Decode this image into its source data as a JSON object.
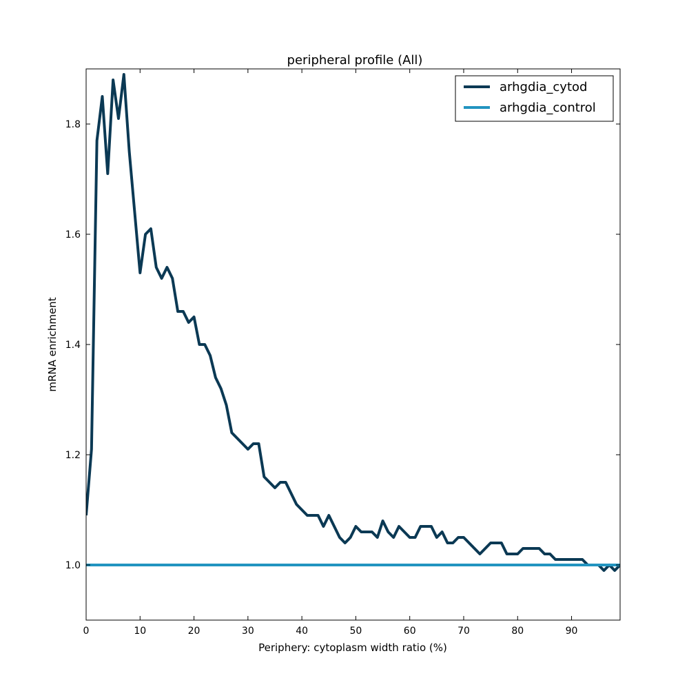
{
  "chart_data": {
    "type": "line",
    "title": "peripheral profile (All)",
    "xlabel": "Periphery: cytoplasm width ratio (%)",
    "ylabel": "mRNA enrichment",
    "xlim": [
      0,
      99
    ],
    "ylim": [
      0.9,
      1.9
    ],
    "x_ticks": [
      0,
      10,
      20,
      30,
      40,
      50,
      60,
      70,
      80,
      90
    ],
    "y_ticks": [
      1.0,
      1.2,
      1.4,
      1.6,
      1.8
    ],
    "y_tick_labels": [
      "1.0",
      "1.2",
      "1.4",
      "1.6",
      "1.8"
    ],
    "grid": false,
    "legend_position": "top-right",
    "series": [
      {
        "name": "arhgdia_cytod",
        "color": "#0b3954",
        "x": [
          0,
          1,
          2,
          3,
          4,
          5,
          6,
          7,
          8,
          9,
          10,
          11,
          12,
          13,
          14,
          15,
          16,
          17,
          18,
          19,
          20,
          21,
          22,
          23,
          24,
          25,
          26,
          27,
          28,
          29,
          30,
          31,
          32,
          33,
          34,
          35,
          36,
          37,
          38,
          39,
          40,
          41,
          42,
          43,
          44,
          45,
          46,
          47,
          48,
          49,
          50,
          51,
          52,
          53,
          54,
          55,
          56,
          57,
          58,
          59,
          60,
          61,
          62,
          63,
          64,
          65,
          66,
          67,
          68,
          69,
          70,
          71,
          72,
          73,
          74,
          75,
          76,
          77,
          78,
          79,
          80,
          81,
          82,
          83,
          84,
          85,
          86,
          87,
          88,
          89,
          90,
          91,
          92,
          93,
          94,
          95,
          96,
          97,
          98,
          99
        ],
        "values": [
          1.09,
          1.21,
          1.77,
          1.85,
          1.71,
          1.88,
          1.81,
          1.89,
          1.75,
          1.64,
          1.53,
          1.6,
          1.61,
          1.54,
          1.52,
          1.54,
          1.52,
          1.46,
          1.46,
          1.44,
          1.45,
          1.4,
          1.4,
          1.38,
          1.34,
          1.32,
          1.29,
          1.24,
          1.23,
          1.22,
          1.21,
          1.22,
          1.22,
          1.16,
          1.15,
          1.14,
          1.15,
          1.15,
          1.13,
          1.11,
          1.1,
          1.09,
          1.09,
          1.09,
          1.07,
          1.09,
          1.07,
          1.05,
          1.04,
          1.05,
          1.07,
          1.06,
          1.06,
          1.06,
          1.05,
          1.08,
          1.06,
          1.05,
          1.07,
          1.06,
          1.05,
          1.05,
          1.07,
          1.07,
          1.07,
          1.05,
          1.06,
          1.04,
          1.04,
          1.05,
          1.05,
          1.04,
          1.03,
          1.02,
          1.03,
          1.04,
          1.04,
          1.04,
          1.02,
          1.02,
          1.02,
          1.03,
          1.03,
          1.03,
          1.03,
          1.02,
          1.02,
          1.01,
          1.01,
          1.01,
          1.01,
          1.01,
          1.01,
          1.0,
          1.0,
          1.0,
          0.99,
          1.0,
          0.99,
          1.0
        ]
      },
      {
        "name": "arhgdia_control",
        "color": "#2294c0",
        "x": [
          0,
          99
        ],
        "values": [
          1.0,
          1.0
        ]
      }
    ]
  }
}
